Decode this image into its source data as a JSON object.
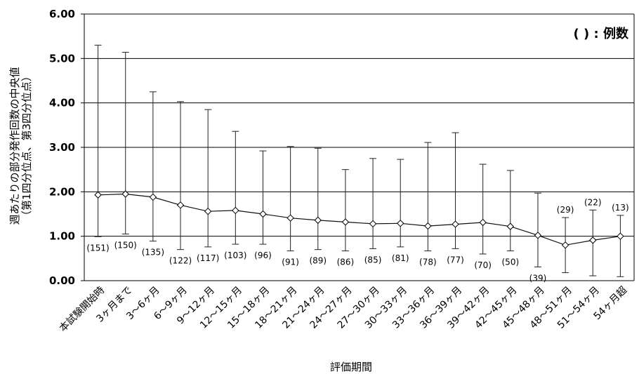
{
  "chart_data": {
    "type": "line",
    "title": "",
    "xlabel": "評価期間",
    "ylabel_line1": "週あたりの部分発作回数の中央値",
    "ylabel_line2": "（第1四分位点、第3四分位点）",
    "note": "( ) : 例数",
    "ylim": [
      0,
      6
    ],
    "yticks": [
      "0.00",
      "1.00",
      "2.00",
      "3.00",
      "4.00",
      "5.00",
      "6.00"
    ],
    "grid": true,
    "categories": [
      "本試験開始時",
      "3ヶ月まで",
      "3～6ヶ月",
      "6～9ヶ月",
      "9～12ヶ月",
      "12～15ヶ月",
      "15～18ヶ月",
      "18～21ヶ月",
      "21～24ヶ月",
      "24～27ヶ月",
      "27～30ヶ月",
      "30～33ヶ月",
      "33～36ヶ月",
      "36～39ヶ月",
      "39～42ヶ月",
      "42～45ヶ月",
      "45～48ヶ月",
      "48～51ヶ月",
      "51～54ヶ月",
      "54ヶ月超"
    ],
    "median": [
      1.93,
      1.95,
      1.88,
      1.7,
      1.56,
      1.58,
      1.5,
      1.41,
      1.36,
      1.32,
      1.28,
      1.29,
      1.23,
      1.27,
      1.31,
      1.22,
      1.02,
      0.8,
      0.91,
      1.0
    ],
    "q1": [
      0.99,
      1.05,
      0.89,
      0.7,
      0.76,
      0.82,
      0.82,
      0.67,
      0.7,
      0.67,
      0.72,
      0.76,
      0.67,
      0.72,
      0.6,
      0.67,
      0.31,
      0.18,
      0.11,
      0.09
    ],
    "q3": [
      5.3,
      5.14,
      4.25,
      4.03,
      3.85,
      3.36,
      2.92,
      3.02,
      2.98,
      2.5,
      2.75,
      2.73,
      3.11,
      3.33,
      2.62,
      2.48,
      1.97,
      1.42,
      1.59,
      1.47
    ],
    "n_labels": [
      "(151)",
      "(150)",
      "(135)",
      "(122)",
      "(117)",
      "(103)",
      "(96)",
      "(91)",
      "(89)",
      "(86)",
      "(85)",
      "(81)",
      "(78)",
      "(77)",
      "(70)",
      "(50)",
      "(39)",
      "(29)",
      "(22)",
      "(13)"
    ]
  }
}
